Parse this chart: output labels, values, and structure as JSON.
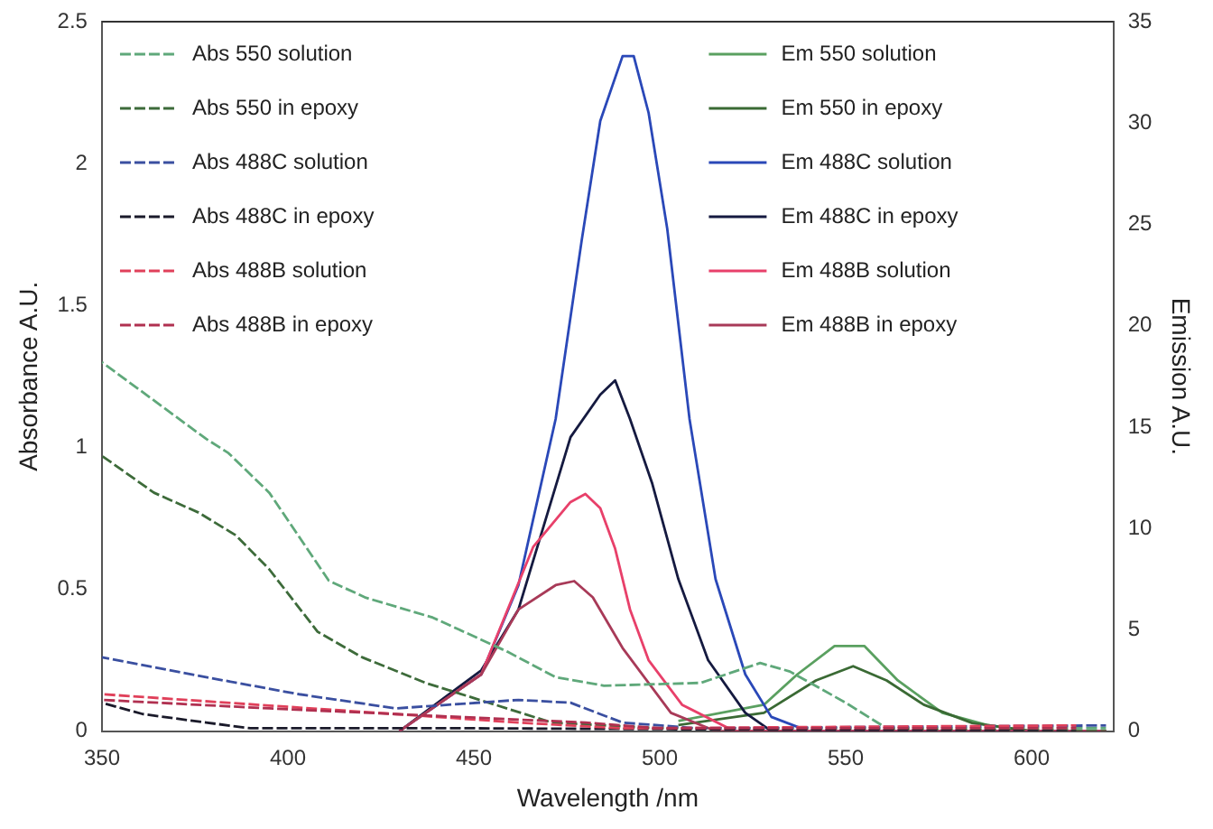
{
  "chart_data": {
    "type": "line",
    "xlabel": "Wavelength /nm",
    "ylabel": "Absorbance A.U.",
    "y2label": "Emission A.U.",
    "xlim": [
      350,
      622
    ],
    "xticks": [
      350,
      400,
      450,
      500,
      550,
      600
    ],
    "ylim": [
      0,
      2.5
    ],
    "yticks": [
      0,
      0.5,
      1.0,
      1.5,
      2.0,
      2.5
    ],
    "y2lim": [
      0,
      35
    ],
    "y2ticks": [
      0,
      5,
      10,
      15,
      20,
      25,
      30,
      35
    ],
    "grid": false,
    "legend": "top",
    "marker": "none",
    "series": [
      {
        "name": "Abs 550 solution",
        "color": "#5fa87a",
        "line_style": "dashed",
        "axis": "y",
        "x": [
          350,
          378,
          384,
          395,
          411,
          421,
          439,
          459,
          472,
          485,
          511,
          527,
          535,
          550,
          561,
          590,
          620
        ],
        "values": [
          1.3,
          1.03,
          0.98,
          0.84,
          0.53,
          0.47,
          0.4,
          0.28,
          0.19,
          0.16,
          0.17,
          0.24,
          0.21,
          0.1,
          0.01,
          0.01,
          0.01
        ]
      },
      {
        "name": "Abs 550 in epoxy",
        "color": "#3d6b3a",
        "line_style": "dashed",
        "axis": "y",
        "x": [
          350,
          364,
          376,
          386,
          395,
          408,
          420,
          437,
          454,
          471,
          500,
          550,
          620
        ],
        "values": [
          0.97,
          0.84,
          0.77,
          0.69,
          0.57,
          0.35,
          0.26,
          0.17,
          0.1,
          0.03,
          0.01,
          0.01,
          0
        ]
      },
      {
        "name": "Abs 488C solution",
        "color": "#3a4fa0",
        "line_style": "dashed",
        "axis": "y",
        "x": [
          350,
          378,
          403,
          429,
          462,
          476,
          490,
          510,
          620
        ],
        "values": [
          0.26,
          0.19,
          0.13,
          0.08,
          0.11,
          0.1,
          0.03,
          0.01,
          0.02
        ]
      },
      {
        "name": "Abs 488C in epoxy",
        "color": "#1a1a2a",
        "line_style": "dashed",
        "axis": "y",
        "x": [
          350,
          361,
          378,
          390,
          450,
          612
        ],
        "values": [
          0.1,
          0.06,
          0.03,
          0.01,
          0.01,
          0
        ]
      },
      {
        "name": "Abs 488B solution",
        "color": "#e0405a",
        "line_style": "dashed",
        "axis": "y",
        "x": [
          350,
          395,
          429,
          462,
          490,
          612
        ],
        "values": [
          0.13,
          0.09,
          0.06,
          0.03,
          0.01,
          0.02
        ]
      },
      {
        "name": "Abs 488B in epoxy",
        "color": "#b03050",
        "line_style": "dashed",
        "axis": "y",
        "x": [
          350,
          395,
          429,
          480,
          500,
          612
        ],
        "values": [
          0.11,
          0.08,
          0.06,
          0.03,
          0.01,
          0.01
        ]
      },
      {
        "name": "Em 550 solution",
        "color": "#5aa060",
        "line_style": "solid",
        "axis": "y2",
        "x": [
          505,
          528,
          537,
          547,
          555,
          564,
          576,
          588,
          600,
          620
        ],
        "values": [
          0.5,
          1.3,
          2.8,
          4.2,
          4.2,
          2.5,
          0.9,
          0.3,
          0,
          0
        ]
      },
      {
        "name": "Em 550 in epoxy",
        "color": "#3a6a34",
        "line_style": "solid",
        "axis": "y2",
        "x": [
          505,
          528,
          542,
          552,
          561,
          571,
          584,
          600,
          620
        ],
        "values": [
          0.3,
          0.9,
          2.5,
          3.2,
          2.5,
          1.3,
          0.4,
          0,
          0
        ]
      },
      {
        "name": "Em 488C solution",
        "color": "#2a48b8",
        "line_style": "solid",
        "axis": "y2",
        "x": [
          430,
          452,
          462,
          472,
          479,
          484,
          490,
          493,
          497,
          502,
          508,
          515,
          523,
          530,
          540,
          620
        ],
        "values": [
          0,
          2.8,
          7.2,
          15.4,
          24.2,
          30.1,
          33.3,
          33.3,
          30.5,
          24.8,
          15.4,
          7.5,
          2.8,
          0.7,
          0,
          0
        ]
      },
      {
        "name": "Em 488C in epoxy",
        "color": "#151a40",
        "line_style": "solid",
        "axis": "y2",
        "x": [
          430,
          452,
          462,
          476,
          484,
          488,
          492,
          498,
          505,
          513,
          523,
          530,
          620
        ],
        "values": [
          0,
          3.0,
          6.0,
          14.5,
          16.6,
          17.3,
          15.4,
          12.2,
          7.5,
          3.5,
          0.9,
          0,
          0
        ]
      },
      {
        "name": "Em 488B solution",
        "color": "#e8406a",
        "line_style": "solid",
        "axis": "y2",
        "x": [
          430,
          452,
          466,
          476,
          480,
          484,
          488,
          492,
          497,
          506,
          520,
          620
        ],
        "values": [
          0,
          2.8,
          9.1,
          11.3,
          11.7,
          11.0,
          9.0,
          6.0,
          3.5,
          1.3,
          0,
          0
        ]
      },
      {
        "name": "Em 488B in epoxy",
        "color": "#a83a58",
        "line_style": "solid",
        "axis": "y2",
        "x": [
          430,
          452,
          462,
          472,
          477,
          482,
          490,
          503,
          515,
          620
        ],
        "values": [
          0,
          2.8,
          6.0,
          7.2,
          7.4,
          6.6,
          4.1,
          0.9,
          0,
          0
        ]
      }
    ]
  }
}
